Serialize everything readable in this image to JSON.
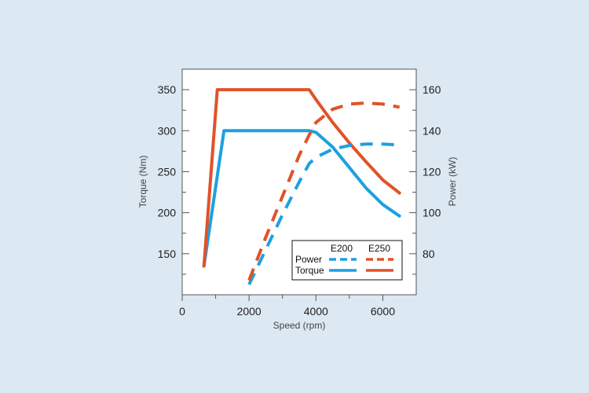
{
  "chart_data": {
    "type": "line",
    "xlabel": "Speed (rpm)",
    "ylabel_left": "Torque (Nm)",
    "ylabel_right": "Power (kW)",
    "xlim": [
      0,
      7000
    ],
    "ylim_left": [
      100,
      375
    ],
    "ylim_right": [
      60,
      170
    ],
    "x_ticks": [
      0,
      2000,
      4000,
      6000
    ],
    "x_tick_labels": [
      "0",
      "2000",
      "4000",
      "6000"
    ],
    "y_left_ticks": [
      150,
      200,
      250,
      300,
      350
    ],
    "y_left_tick_labels": [
      "150",
      "200",
      "250",
      "300",
      "350"
    ],
    "y_right_ticks": [
      80,
      100,
      120,
      140,
      160
    ],
    "y_right_tick_labels": [
      "80",
      "100",
      "120",
      "140",
      "160"
    ],
    "grid": "minor ticks only",
    "legend": {
      "position": "bottom-right",
      "col_headers": [
        "E200",
        "E250"
      ],
      "row_labels": [
        "Power",
        "Torque"
      ]
    },
    "colors": {
      "E200": "#1ea0e0",
      "E250": "#e0522a"
    },
    "series": [
      {
        "model": "E200",
        "quantity": "Torque",
        "axis": "left",
        "style": "solid",
        "x": [
          650,
          1250,
          3800,
          4000,
          4500,
          5000,
          5500,
          6000,
          6500
        ],
        "y": [
          135,
          300,
          300,
          298,
          280,
          255,
          230,
          210,
          196
        ]
      },
      {
        "model": "E250",
        "quantity": "Torque",
        "axis": "left",
        "style": "solid",
        "x": [
          650,
          1050,
          3800,
          4000,
          4500,
          5000,
          5500,
          6000,
          6500
        ],
        "y": [
          135,
          350,
          350,
          338,
          310,
          285,
          262,
          240,
          224
        ]
      },
      {
        "model": "E200",
        "quantity": "Power",
        "axis": "right",
        "style": "dashed",
        "x": [
          2000,
          2500,
          3000,
          3500,
          3800,
          4000,
          4500,
          5000,
          5500,
          6000,
          6500
        ],
        "y": [
          65,
          82,
          99,
          115,
          124,
          127,
          131,
          132.8,
          133.5,
          133.5,
          133
        ]
      },
      {
        "model": "E250",
        "quantity": "Power",
        "axis": "right",
        "style": "dashed",
        "x": [
          2000,
          2500,
          3000,
          3500,
          3800,
          4000,
          4500,
          5000,
          5500,
          6000,
          6500
        ],
        "y": [
          67,
          88,
          108,
          128,
          138,
          144,
          150.5,
          153,
          153.5,
          153,
          151.5
        ]
      }
    ]
  }
}
